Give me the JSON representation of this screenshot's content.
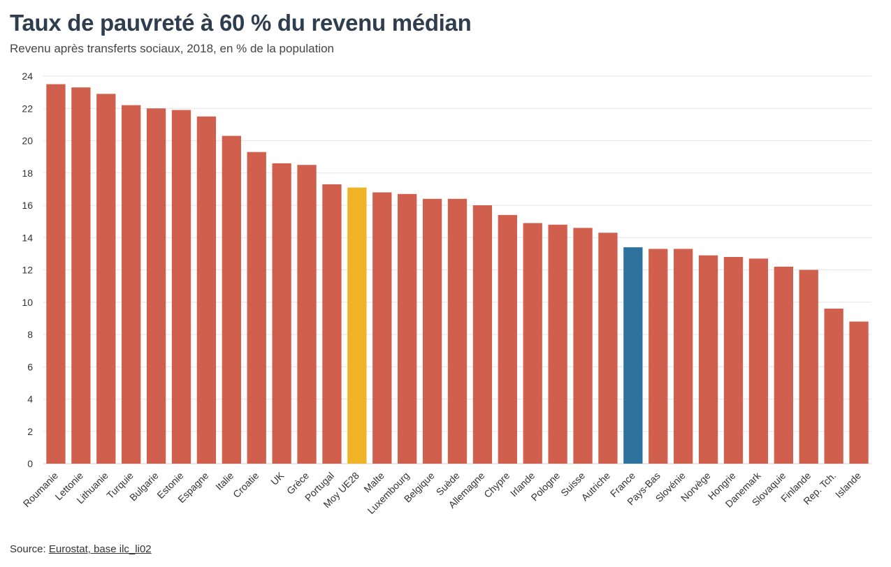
{
  "title": "Taux de pauvreté à 60 % du revenu médian",
  "subtitle": "Revenu après transferts sociaux, 2018, en % de la population",
  "source": {
    "prefix": "Source: ",
    "link_text": "Eurostat, base ilc_li02"
  },
  "colors": {
    "default": "#d15f4e",
    "highlight_avg": "#efb325",
    "highlight_france": "#30729e",
    "grid": "#e6e6e6",
    "title": "#2e3e4e"
  },
  "chart_data": {
    "type": "bar",
    "title": "Taux de pauvreté à 60 % du revenu médian",
    "subtitle": "Revenu après transferts sociaux, 2018, en % de la population",
    "ylim": [
      0,
      24
    ],
    "yticks": [
      0,
      2,
      4,
      6,
      8,
      10,
      12,
      14,
      16,
      18,
      20,
      22,
      24
    ],
    "grid": true,
    "categories": [
      "Roumanie",
      "Lettonie",
      "Lithuanie",
      "Turquie",
      "Bulgarie",
      "Estonie",
      "Espagne",
      "Italie",
      "Croatie",
      "UK",
      "Grèce",
      "Portugal",
      "Moy UE28",
      "Malte",
      "Luxembourg",
      "Belgique",
      "Suède",
      "Allemagne",
      "Chypre",
      "Irlande",
      "Pologne",
      "Suisse",
      "Autriche",
      "France",
      "Pays-Bas",
      "Slovénie",
      "Norvège",
      "Hongrie",
      "Danemark",
      "Slovaquie",
      "Finlande",
      "Rep. Tch.",
      "Islande"
    ],
    "values": [
      23.5,
      23.3,
      22.9,
      22.2,
      22.0,
      21.9,
      21.5,
      20.3,
      19.3,
      18.6,
      18.5,
      17.3,
      17.1,
      16.8,
      16.7,
      16.4,
      16.4,
      16.0,
      15.4,
      14.9,
      14.8,
      14.6,
      14.3,
      13.4,
      13.3,
      13.3,
      12.9,
      12.8,
      12.7,
      12.2,
      12.0,
      9.6,
      8.8
    ],
    "highlights": {
      "Moy UE28": "highlight_avg",
      "France": "highlight_france"
    }
  }
}
